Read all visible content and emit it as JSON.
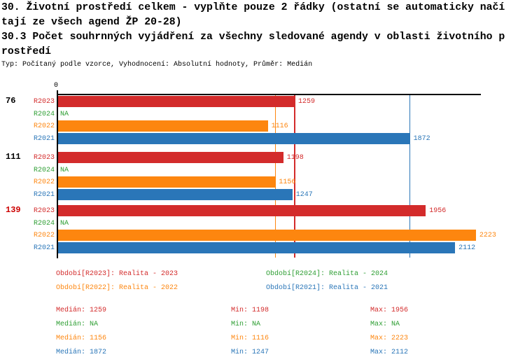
{
  "header": {
    "line1": "30. Životní prostředí celkem - vyplňte pouze 2 řádky (ostatní se automaticky načí",
    "line2": "tají ze všech agend ŽP 20-28)",
    "line3": "30.3 Počet souhrnných vyjádření za všechny sledované agendy v oblasti životního p",
    "line4": "rostředí",
    "meta": "Typ: Počítaný podle vzorce, Vyhodnocení: Absolutní hodnoty, Průměr: Medián"
  },
  "chart_data": {
    "type": "bar",
    "orientation": "horizontal",
    "title": "30.3 Počet souhrnných vyjádření za všechny sledované agendy v oblasti životního prostředí",
    "axis": {
      "origin_tick_label": "0",
      "min": 0,
      "max": 2250,
      "grid": false
    },
    "na_text": "NA",
    "series": [
      {
        "id": "R2023",
        "name": "Období[R2023]: Realita - 2023",
        "color": "#d32b2b"
      },
      {
        "id": "R2024",
        "name": "Období[R2024]: Realita - 2024",
        "color": "#2e9e33"
      },
      {
        "id": "R2022",
        "name": "Období[R2022]: Realita - 2022",
        "color": "#fd860f"
      },
      {
        "id": "R2021",
        "name": "Období[R2021]: Realita - 2021",
        "color": "#2a76b8"
      }
    ],
    "row_order": [
      "R2023",
      "R2024",
      "R2022",
      "R2021"
    ],
    "groups": [
      {
        "label": "76",
        "label_color": "#000000",
        "values": {
          "R2023": 1259,
          "R2024": null,
          "R2022": 1116,
          "R2021": 1872
        }
      },
      {
        "label": "111",
        "label_color": "#000000",
        "values": {
          "R2023": 1198,
          "R2024": null,
          "R2022": 1156,
          "R2021": 1247
        }
      },
      {
        "label": "139",
        "label_color": "#cc0000",
        "values": {
          "R2023": 1956,
          "R2024": null,
          "R2022": 2223,
          "R2021": 2112
        }
      }
    ],
    "median_lines": [
      {
        "series": "R2023",
        "value": 1259
      },
      {
        "series": "R2022",
        "value": 1156
      },
      {
        "series": "R2021",
        "value": 1872
      }
    ],
    "legend_position": "bottom"
  },
  "stats": {
    "labels": {
      "median": "Medián:",
      "min": "Min:",
      "max": "Max:"
    },
    "rows": [
      {
        "series": "R2023",
        "median": "1259",
        "min": "1198",
        "max": "1956"
      },
      {
        "series": "R2024",
        "median": "NA",
        "min": "NA",
        "max": "NA"
      },
      {
        "series": "R2022",
        "median": "1156",
        "min": "1116",
        "max": "2223"
      },
      {
        "series": "R2021",
        "median": "1872",
        "min": "1247",
        "max": "2112"
      }
    ]
  }
}
